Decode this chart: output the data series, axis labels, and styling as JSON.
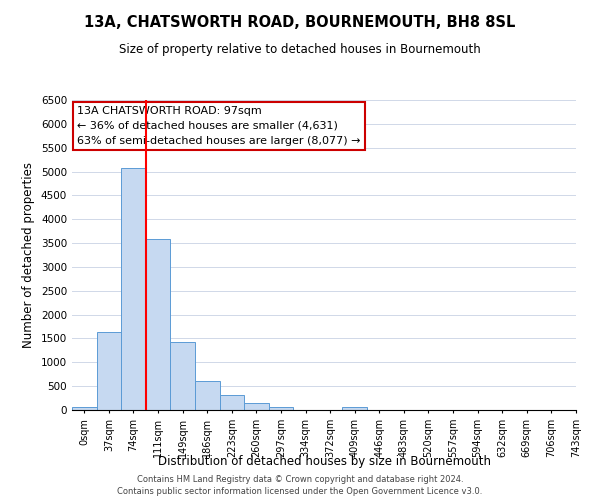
{
  "title": "13A, CHATSWORTH ROAD, BOURNEMOUTH, BH8 8SL",
  "subtitle": "Size of property relative to detached houses in Bournemouth",
  "xlabel": "Distribution of detached houses by size in Bournemouth",
  "ylabel": "Number of detached properties",
  "bin_labels": [
    "0sqm",
    "37sqm",
    "74sqm",
    "111sqm",
    "149sqm",
    "186sqm",
    "223sqm",
    "260sqm",
    "297sqm",
    "334sqm",
    "372sqm",
    "409sqm",
    "446sqm",
    "483sqm",
    "520sqm",
    "557sqm",
    "594sqm",
    "632sqm",
    "669sqm",
    "706sqm",
    "743sqm"
  ],
  "bar_values": [
    60,
    1630,
    5080,
    3580,
    1430,
    615,
    305,
    150,
    65,
    0,
    0,
    55,
    0,
    0,
    0,
    0,
    0,
    0,
    0,
    0
  ],
  "bar_color": "#c6d9f1",
  "bar_edge_color": "#5b9bd5",
  "vline_x": 2.5,
  "vline_color": "#ff0000",
  "annotation_text": "13A CHATSWORTH ROAD: 97sqm\n← 36% of detached houses are smaller (4,631)\n63% of semi-detached houses are larger (8,077) →",
  "annotation_box_color": "#ffffff",
  "annotation_box_edge": "#cc0000",
  "ylim": [
    0,
    6500
  ],
  "yticks": [
    0,
    500,
    1000,
    1500,
    2000,
    2500,
    3000,
    3500,
    4000,
    4500,
    5000,
    5500,
    6000,
    6500
  ],
  "footer_line1": "Contains HM Land Registry data © Crown copyright and database right 2024.",
  "footer_line2": "Contains public sector information licensed under the Open Government Licence v3.0.",
  "bg_color": "#ffffff",
  "grid_color": "#d0d8e8"
}
